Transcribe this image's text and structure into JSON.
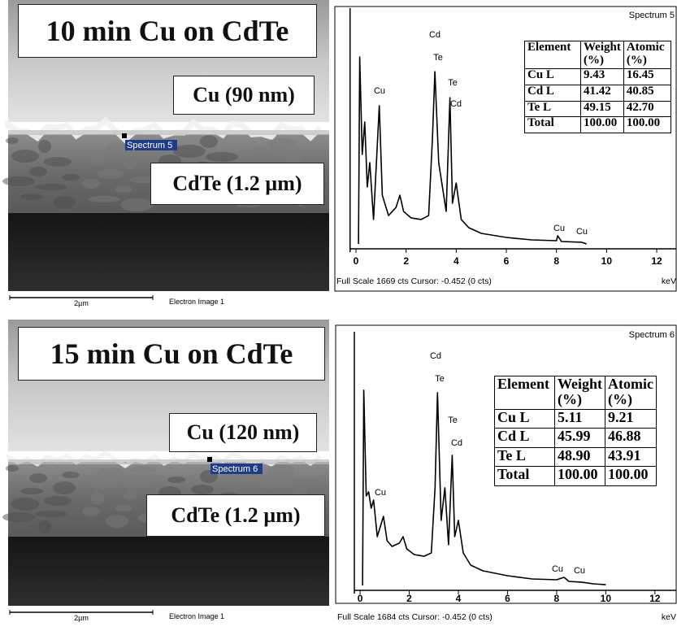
{
  "panels": [
    {
      "sem": {
        "title": "10 min Cu on CdTe",
        "cu_label": "Cu (90 nm)",
        "cdte_label": "CdTe (1.2 µm)",
        "marker": "Spectrum 5",
        "scale": "2µm",
        "caption": "Electron Image 1"
      },
      "spectrum": {
        "name": "Spectrum 5",
        "footer": "Full Scale 1669 cts Cursor: -0.452 (0 cts)",
        "unit": "keV",
        "xlim": [
          -0.3,
          12.8
        ],
        "ylim": [
          0,
          1669
        ],
        "xticks": [
          0,
          2,
          4,
          6,
          8,
          10,
          12
        ],
        "x": [
          0.1,
          0.15,
          0.25,
          0.35,
          0.45,
          0.55,
          0.7,
          0.93,
          1.05,
          1.3,
          1.6,
          1.75,
          1.9,
          2.2,
          2.6,
          2.9,
          3.05,
          3.15,
          3.3,
          3.45,
          3.6,
          3.75,
          3.85,
          4.0,
          4.2,
          4.5,
          5,
          6,
          7,
          8,
          8.05,
          8.2,
          9,
          9.2
        ],
        "values": [
          0,
          1323,
          633,
          863,
          403,
          575,
          173,
          978,
          345,
          201,
          259,
          345,
          230,
          184,
          173,
          201,
          748,
          1219,
          575,
          403,
          230,
          1035,
          288,
          431,
          173,
          115,
          75,
          46,
          29,
          23,
          58,
          17,
          12,
          0
        ],
        "peaks": [
          "Cd",
          "Te",
          "Te",
          "Cd",
          "Cu",
          "Cu",
          "Cu"
        ]
      },
      "table": {
        "header": [
          "Element",
          "Weight (%)",
          "Atomic (%)"
        ],
        "rows": [
          [
            "Cu L",
            "9.43",
            "16.45"
          ],
          [
            "Cd L",
            "41.42",
            "40.85"
          ],
          [
            "Te L",
            "49.15",
            "42.70"
          ],
          [
            "Total",
            "100.00",
            "100.00"
          ]
        ]
      }
    },
    {
      "sem": {
        "title": "15 min Cu on CdTe",
        "cu_label": "Cu (120 nm)",
        "cdte_label": "CdTe (1.2 µm)",
        "marker": "Spectrum 6",
        "scale": "2µm",
        "caption": "Electron Image 1"
      },
      "spectrum": {
        "name": "Spectrum 6",
        "footer": "Full Scale 1684 cts Cursor: -0.452 (0 cts)",
        "unit": "keV",
        "xlim": [
          -0.3,
          12.8
        ],
        "ylim": [
          0,
          1684
        ],
        "xticks": [
          0,
          2,
          4,
          6,
          8,
          10,
          12
        ],
        "x": [
          0.1,
          0.15,
          0.25,
          0.35,
          0.45,
          0.55,
          0.7,
          0.95,
          1.1,
          1.3,
          1.6,
          1.75,
          1.9,
          2.2,
          2.6,
          2.9,
          3.05,
          3.15,
          3.3,
          3.45,
          3.6,
          3.75,
          3.85,
          4.0,
          4.2,
          4.5,
          5,
          6,
          7,
          8,
          8.3,
          8.5,
          9,
          9.5,
          10
        ],
        "values": [
          0,
          1296,
          594,
          621,
          513,
          567,
          324,
          459,
          297,
          259,
          281,
          324,
          243,
          205,
          194,
          216,
          648,
          1280,
          432,
          648,
          270,
          864,
          324,
          432,
          216,
          135,
          97,
          65,
          43,
          38,
          54,
          27,
          22,
          11,
          5
        ],
        "peaks": [
          "Cd",
          "Te",
          "Te",
          "Cd",
          "Cu",
          "Cu",
          "Cu"
        ]
      },
      "table": {
        "header": [
          "Element",
          "Weight (%)",
          "Atomic (%)"
        ],
        "rows": [
          [
            "Cu L",
            "5.11",
            "9.21"
          ],
          [
            "Cd L",
            "45.99",
            "46.88"
          ],
          [
            "Te L",
            "48.90",
            "43.91"
          ],
          [
            "Total",
            "100.00",
            "100.00"
          ]
        ]
      }
    }
  ]
}
